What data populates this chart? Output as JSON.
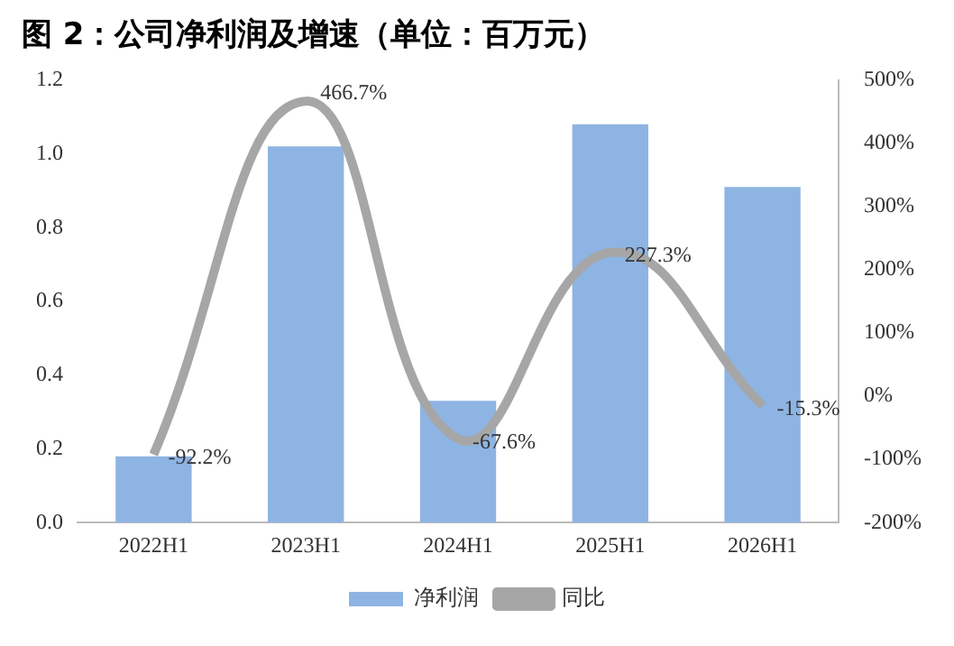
{
  "chart_data": {
    "type": "bar",
    "title": "图 2：公司净利润及增速（单位：百万元）",
    "categories": [
      "2022H1",
      "2023H1",
      "2024H1",
      "2025H1",
      "2026H1"
    ],
    "series": [
      {
        "name": "净利润",
        "color": "#8eb4e3",
        "values": [
          0.18,
          1.02,
          0.33,
          1.08,
          0.91
        ]
      },
      {
        "name": "同比",
        "type": "line",
        "axis": "y2",
        "color": "#a6a6a6",
        "values": [
          -92.2,
          466.7,
          -67.6,
          227.3,
          -15.3
        ],
        "value_labels": [
          "-92.2%",
          "466.7%",
          "-67.6%",
          "227.3%",
          "-15.3%"
        ]
      }
    ],
    "ylim": [
      0,
      1.2
    ],
    "yticks": [
      {
        "value": 0,
        "label": "0.0"
      },
      {
        "value": 0.2,
        "label": "0.2"
      },
      {
        "value": 0.4,
        "label": "0.4"
      },
      {
        "value": 0.6,
        "label": "0.6"
      },
      {
        "value": 0.8,
        "label": "0.8"
      },
      {
        "value": 1,
        "label": "1.0"
      },
      {
        "value": 1.2,
        "label": "1.2"
      }
    ],
    "y2lim": [
      -200,
      500
    ],
    "y2ticks": [
      {
        "value": -200,
        "label": "-200%"
      },
      {
        "value": -100,
        "label": "-100%"
      },
      {
        "value": 0,
        "label": "0%"
      },
      {
        "value": 100,
        "label": "100%"
      },
      {
        "value": 200,
        "label": "200%"
      },
      {
        "value": 300,
        "label": "300%"
      },
      {
        "value": 400,
        "label": "400%"
      },
      {
        "value": 500,
        "label": "500%"
      }
    ],
    "grid": false,
    "legend": "bottom",
    "marker": "none",
    "line_style": "solid"
  }
}
